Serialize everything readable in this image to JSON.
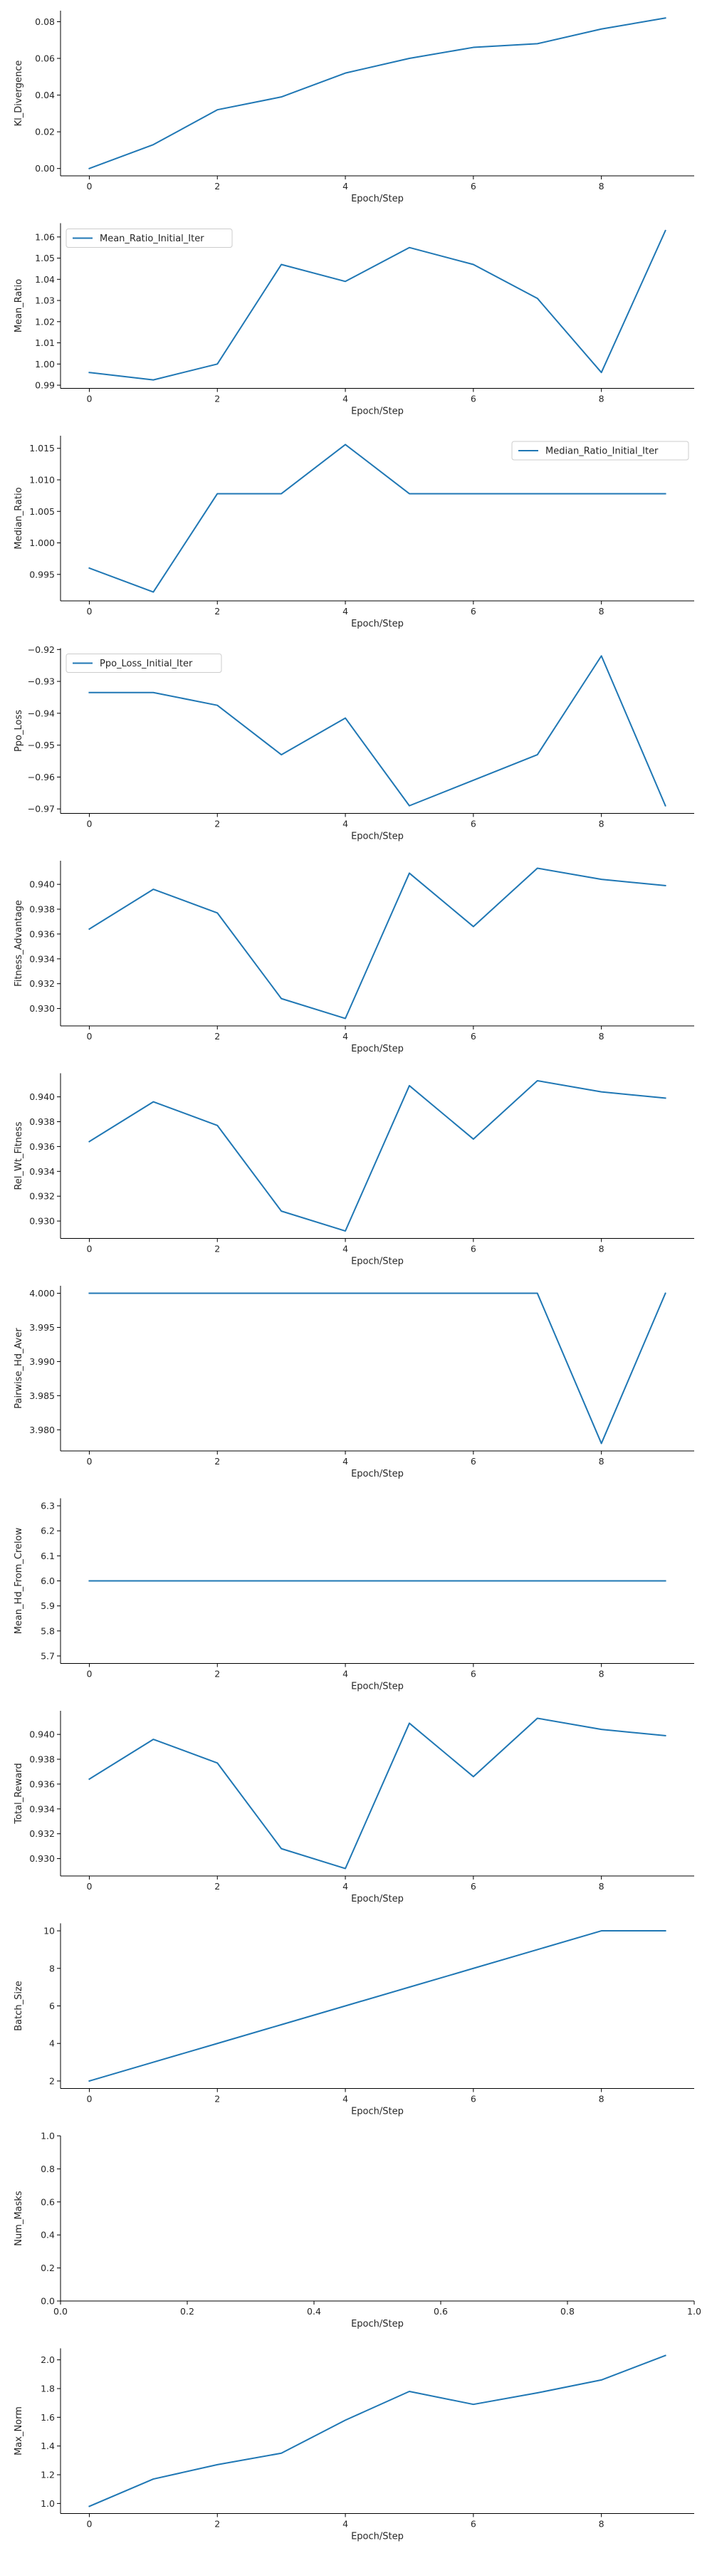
{
  "line_color": "#1f77b4",
  "chart_data": [
    {
      "type": "line",
      "ylabel": "Kl_Divergence",
      "xlabel": "Epoch/Step",
      "x": [
        0,
        1,
        2,
        3,
        4,
        5,
        6,
        7,
        8,
        9
      ],
      "series": [
        {
          "values": [
            0.0,
            0.013,
            0.032,
            0.039,
            0.052,
            0.06,
            0.066,
            0.068,
            0.076,
            0.082
          ]
        }
      ],
      "ylim": [
        -0.004,
        0.086
      ],
      "yticks": [
        0.0,
        0.02,
        0.04,
        0.06,
        0.08
      ],
      "ytick_labels": [
        "0.00",
        "0.02",
        "0.04",
        "0.06",
        "0.08"
      ],
      "xticks": [
        0,
        2,
        4,
        6,
        8
      ],
      "xtick_labels": [
        "0",
        "2",
        "4",
        "6",
        "8"
      ],
      "xlim": [
        -0.45,
        9.45
      ],
      "legend": null
    },
    {
      "type": "line",
      "ylabel": "Mean_Ratio",
      "xlabel": "Epoch/Step",
      "x": [
        0,
        1,
        2,
        3,
        4,
        5,
        6,
        7,
        8,
        9
      ],
      "series": [
        {
          "name": "Mean_Ratio_Initial_Iter",
          "values": [
            0.996,
            0.9925,
            1.0,
            1.047,
            1.039,
            1.055,
            1.047,
            1.031,
            0.996,
            1.063
          ]
        }
      ],
      "ylim": [
        0.9885,
        1.0665
      ],
      "yticks": [
        0.99,
        1.0,
        1.01,
        1.02,
        1.03,
        1.04,
        1.05,
        1.06
      ],
      "ytick_labels": [
        "0.99",
        "1.00",
        "1.01",
        "1.02",
        "1.03",
        "1.04",
        "1.05",
        "1.06"
      ],
      "xticks": [
        0,
        2,
        4,
        6,
        8
      ],
      "xtick_labels": [
        "0",
        "2",
        "4",
        "6",
        "8"
      ],
      "xlim": [
        -0.45,
        9.45
      ],
      "legend": "upper left"
    },
    {
      "type": "line",
      "ylabel": "Median_Ratio",
      "xlabel": "Epoch/Step",
      "x": [
        0,
        1,
        2,
        3,
        4,
        5,
        6,
        7,
        8,
        9
      ],
      "series": [
        {
          "name": "Median_Ratio_Initial_Iter",
          "values": [
            0.996,
            0.9922,
            1.0078,
            1.0078,
            1.0156,
            1.0078,
            1.0078,
            1.0078,
            1.0078,
            1.0078
          ]
        }
      ],
      "ylim": [
        0.9908,
        1.017
      ],
      "yticks": [
        0.995,
        1.0,
        1.005,
        1.01,
        1.015
      ],
      "ytick_labels": [
        "0.995",
        "1.000",
        "1.005",
        "1.010",
        "1.015"
      ],
      "xticks": [
        0,
        2,
        4,
        6,
        8
      ],
      "xtick_labels": [
        "0",
        "2",
        "4",
        "6",
        "8"
      ],
      "xlim": [
        -0.45,
        9.45
      ],
      "legend": "upper right"
    },
    {
      "type": "line",
      "ylabel": "Ppo_Loss",
      "xlabel": "Epoch/Step",
      "x": [
        0,
        1,
        2,
        3,
        4,
        5,
        6,
        7,
        8,
        9
      ],
      "series": [
        {
          "name": "Ppo_Loss_Initial_Iter",
          "values": [
            -0.9335,
            -0.9335,
            -0.9375,
            -0.953,
            -0.9415,
            -0.969,
            -0.961,
            -0.953,
            -0.922,
            -0.969
          ]
        }
      ],
      "ylim": [
        -0.9714,
        -0.9196
      ],
      "yticks": [
        -0.97,
        -0.96,
        -0.95,
        -0.94,
        -0.93,
        -0.92
      ],
      "ytick_labels": [
        "−0.97",
        "−0.96",
        "−0.95",
        "−0.94",
        "−0.93",
        "−0.92"
      ],
      "xticks": [
        0,
        2,
        4,
        6,
        8
      ],
      "xtick_labels": [
        "0",
        "2",
        "4",
        "6",
        "8"
      ],
      "xlim": [
        -0.45,
        9.45
      ],
      "legend": "upper left"
    },
    {
      "type": "line",
      "ylabel": "Fitness_Advantage",
      "xlabel": "Epoch/Step",
      "x": [
        0,
        1,
        2,
        3,
        4,
        5,
        6,
        7,
        8,
        9
      ],
      "series": [
        {
          "values": [
            0.9364,
            0.9396,
            0.9377,
            0.9308,
            0.9292,
            0.9409,
            0.9366,
            0.9413,
            0.9404,
            0.9399
          ]
        }
      ],
      "ylim": [
        0.9286,
        0.9419
      ],
      "yticks": [
        0.93,
        0.932,
        0.934,
        0.936,
        0.938,
        0.94
      ],
      "ytick_labels": [
        "0.930",
        "0.932",
        "0.934",
        "0.936",
        "0.938",
        "0.940"
      ],
      "xticks": [
        0,
        2,
        4,
        6,
        8
      ],
      "xtick_labels": [
        "0",
        "2",
        "4",
        "6",
        "8"
      ],
      "xlim": [
        -0.45,
        9.45
      ],
      "legend": null
    },
    {
      "type": "line",
      "ylabel": "Rel_Wt_Fitness",
      "xlabel": "Epoch/Step",
      "x": [
        0,
        1,
        2,
        3,
        4,
        5,
        6,
        7,
        8,
        9
      ],
      "series": [
        {
          "values": [
            0.9364,
            0.9396,
            0.9377,
            0.9308,
            0.9292,
            0.9409,
            0.9366,
            0.9413,
            0.9404,
            0.9399
          ]
        }
      ],
      "ylim": [
        0.9286,
        0.9419
      ],
      "yticks": [
        0.93,
        0.932,
        0.934,
        0.936,
        0.938,
        0.94
      ],
      "ytick_labels": [
        "0.930",
        "0.932",
        "0.934",
        "0.936",
        "0.938",
        "0.940"
      ],
      "xticks": [
        0,
        2,
        4,
        6,
        8
      ],
      "xtick_labels": [
        "0",
        "2",
        "4",
        "6",
        "8"
      ],
      "xlim": [
        -0.45,
        9.45
      ],
      "legend": null
    },
    {
      "type": "line",
      "ylabel": "Pairwise_Hd_Aver",
      "xlabel": "Epoch/Step",
      "x": [
        0,
        1,
        2,
        3,
        4,
        5,
        6,
        7,
        8,
        9
      ],
      "series": [
        {
          "values": [
            4.0,
            4.0,
            4.0,
            4.0,
            4.0,
            4.0,
            4.0,
            4.0,
            3.978,
            4.0
          ]
        }
      ],
      "ylim": [
        3.9769,
        4.0011
      ],
      "yticks": [
        3.98,
        3.985,
        3.99,
        3.995,
        4.0
      ],
      "ytick_labels": [
        "3.980",
        "3.985",
        "3.990",
        "3.995",
        "4.000"
      ],
      "xticks": [
        0,
        2,
        4,
        6,
        8
      ],
      "xtick_labels": [
        "0",
        "2",
        "4",
        "6",
        "8"
      ],
      "xlim": [
        -0.45,
        9.45
      ],
      "legend": null
    },
    {
      "type": "line",
      "ylabel": "Mean_Hd_From_Crelow",
      "xlabel": "Epoch/Step",
      "x": [
        0,
        1,
        2,
        3,
        4,
        5,
        6,
        7,
        8,
        9
      ],
      "series": [
        {
          "values": [
            6.0,
            6.0,
            6.0,
            6.0,
            6.0,
            6.0,
            6.0,
            6.0,
            6.0,
            6.0
          ]
        }
      ],
      "ylim": [
        5.67,
        6.33
      ],
      "yticks": [
        5.7,
        5.8,
        5.9,
        6.0,
        6.1,
        6.2,
        6.3
      ],
      "ytick_labels": [
        "5.7",
        "5.8",
        "5.9",
        "6.0",
        "6.1",
        "6.2",
        "6.3"
      ],
      "xticks": [
        0,
        2,
        4,
        6,
        8
      ],
      "xtick_labels": [
        "0",
        "2",
        "4",
        "6",
        "8"
      ],
      "xlim": [
        -0.45,
        9.45
      ],
      "legend": null
    },
    {
      "type": "line",
      "ylabel": "Total_Reward",
      "xlabel": "Epoch/Step",
      "x": [
        0,
        1,
        2,
        3,
        4,
        5,
        6,
        7,
        8,
        9
      ],
      "series": [
        {
          "values": [
            0.9364,
            0.9396,
            0.9377,
            0.9308,
            0.9292,
            0.9409,
            0.9366,
            0.9413,
            0.9404,
            0.9399
          ]
        }
      ],
      "ylim": [
        0.9286,
        0.9419
      ],
      "yticks": [
        0.93,
        0.932,
        0.934,
        0.936,
        0.938,
        0.94
      ],
      "ytick_labels": [
        "0.930",
        "0.932",
        "0.934",
        "0.936",
        "0.938",
        "0.940"
      ],
      "xticks": [
        0,
        2,
        4,
        6,
        8
      ],
      "xtick_labels": [
        "0",
        "2",
        "4",
        "6",
        "8"
      ],
      "xlim": [
        -0.45,
        9.45
      ],
      "legend": null
    },
    {
      "type": "line",
      "ylabel": "Batch_Size",
      "xlabel": "Epoch/Step",
      "x": [
        0,
        1,
        2,
        3,
        4,
        5,
        6,
        7,
        8,
        9
      ],
      "series": [
        {
          "values": [
            2,
            3,
            4,
            5,
            6,
            7,
            8,
            9,
            10,
            10
          ]
        }
      ],
      "ylim": [
        1.6,
        10.4
      ],
      "yticks": [
        2,
        4,
        6,
        8,
        10
      ],
      "ytick_labels": [
        "2",
        "4",
        "6",
        "8",
        "10"
      ],
      "xticks": [
        0,
        2,
        4,
        6,
        8
      ],
      "xtick_labels": [
        "0",
        "2",
        "4",
        "6",
        "8"
      ],
      "xlim": [
        -0.45,
        9.45
      ],
      "legend": null
    },
    {
      "type": "line",
      "ylabel": "Num_Masks",
      "xlabel": "Epoch/Step",
      "x": [],
      "series": [],
      "ylim": [
        0.0,
        1.0
      ],
      "yticks": [
        0.0,
        0.2,
        0.4,
        0.6,
        0.8,
        1.0
      ],
      "ytick_labels": [
        "0.0",
        "0.2",
        "0.4",
        "0.6",
        "0.8",
        "1.0"
      ],
      "xticks": [
        0.0,
        0.2,
        0.4,
        0.6,
        0.8,
        1.0
      ],
      "xtick_labels": [
        "0.0",
        "0.2",
        "0.4",
        "0.6",
        "0.8",
        "1.0"
      ],
      "xlim": [
        0.0,
        1.0
      ],
      "legend": null
    },
    {
      "type": "line",
      "ylabel": "Max_Norm",
      "xlabel": "Epoch/Step",
      "x": [
        0,
        1,
        2,
        3,
        4,
        5,
        6,
        7,
        8,
        9
      ],
      "series": [
        {
          "values": [
            0.98,
            1.17,
            1.27,
            1.35,
            1.58,
            1.78,
            1.69,
            1.77,
            1.86,
            2.03
          ]
        }
      ],
      "ylim": [
        0.93,
        2.08
      ],
      "yticks": [
        1.0,
        1.2,
        1.4,
        1.6,
        1.8,
        2.0
      ],
      "ytick_labels": [
        "1.0",
        "1.2",
        "1.4",
        "1.6",
        "1.8",
        "2.0"
      ],
      "xticks": [
        0,
        2,
        4,
        6,
        8
      ],
      "xtick_labels": [
        "0",
        "2",
        "4",
        "6",
        "8"
      ],
      "xlim": [
        -0.45,
        9.45
      ],
      "legend": null
    }
  ]
}
